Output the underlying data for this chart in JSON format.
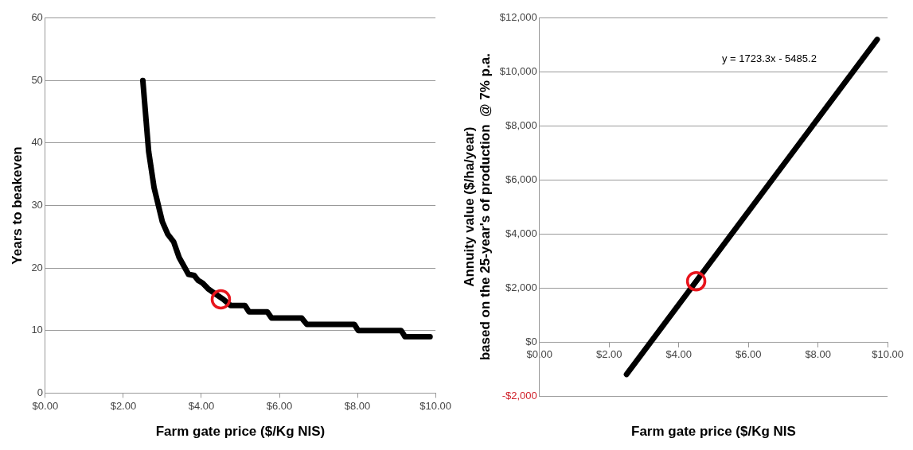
{
  "chart_data": [
    {
      "type": "line",
      "xlabel": "Farm gate price ($/Kg NIS)",
      "ylabel": "Years to beakeven",
      "xlim": [
        0,
        10
      ],
      "xticks": [
        {
          "value": 0,
          "label": "$0.00"
        },
        {
          "value": 2,
          "label": "$2.00"
        },
        {
          "value": 4,
          "label": "$4.00"
        },
        {
          "value": 6,
          "label": "$6.00"
        },
        {
          "value": 8,
          "label": "$8.00"
        },
        {
          "value": 10,
          "label": "$10.00"
        }
      ],
      "ylim": [
        0,
        60
      ],
      "yticks": [
        0,
        10,
        20,
        30,
        40,
        50,
        60
      ],
      "grid": "y",
      "series": [
        {
          "color": "#000000",
          "marker": "none",
          "line_style": "solid",
          "x": [
            2.5,
            2.65,
            2.79,
            3.0,
            3.14,
            3.29,
            3.43,
            3.67,
            3.82,
            3.92,
            4.03,
            4.17,
            4.35,
            4.56,
            4.75,
            5.12,
            5.22,
            5.69,
            5.8,
            6.57,
            6.7,
            7.92,
            8.02,
            9.12,
            9.22,
            9.86
          ],
          "values": [
            50,
            38.6,
            32.8,
            27.4,
            25.4,
            24.2,
            21.7,
            19,
            18.8,
            18,
            17.6,
            16.7,
            15.9,
            15,
            14,
            14,
            13,
            13,
            12,
            12,
            11,
            11,
            10,
            10,
            9,
            9
          ]
        },
        {
          "type": "scatter",
          "color": "#e8141c",
          "marker": "circle",
          "x": [
            4.5
          ],
          "values": [
            15
          ]
        }
      ]
    },
    {
      "type": "line",
      "xlabel": "Farm gate price ($/Kg NIS",
      "ylabel": "Annuity value ($/ha/year)\nbased on the 25-year's of production  @ 7% p.a.",
      "annotations": [
        "y = 1723.3x - 5485.2"
      ],
      "xlim": [
        0,
        10
      ],
      "xticks": [
        {
          "value": 0,
          "label": "$0.00"
        },
        {
          "value": 2,
          "label": "$2.00"
        },
        {
          "value": 4,
          "label": "$4.00"
        },
        {
          "value": 6,
          "label": "$6.00"
        },
        {
          "value": 8,
          "label": "$8.00"
        },
        {
          "value": 10,
          "label": "$10.00"
        }
      ],
      "ylim": [
        -2000,
        12000
      ],
      "yticks": [
        {
          "value": -2000,
          "label": "-$2,000"
        },
        {
          "value": 0,
          "label": "$0"
        },
        {
          "value": 2000,
          "label": "$2,000"
        },
        {
          "value": 4000,
          "label": "$4,000"
        },
        {
          "value": 6000,
          "label": "$6,000"
        },
        {
          "value": 8000,
          "label": "$8,000"
        },
        {
          "value": 10000,
          "label": "$10,000"
        },
        {
          "value": 12000,
          "label": "$12,000"
        }
      ],
      "grid": "y",
      "series": [
        {
          "color": "#000000",
          "marker": "none",
          "line_style": "solid",
          "x": [
            2.5,
            9.7
          ],
          "values": [
            -1200,
            11200
          ]
        },
        {
          "type": "scatter",
          "color": "#e8141c",
          "marker": "circle",
          "x": [
            4.5
          ],
          "values": [
            2250
          ]
        }
      ]
    }
  ]
}
